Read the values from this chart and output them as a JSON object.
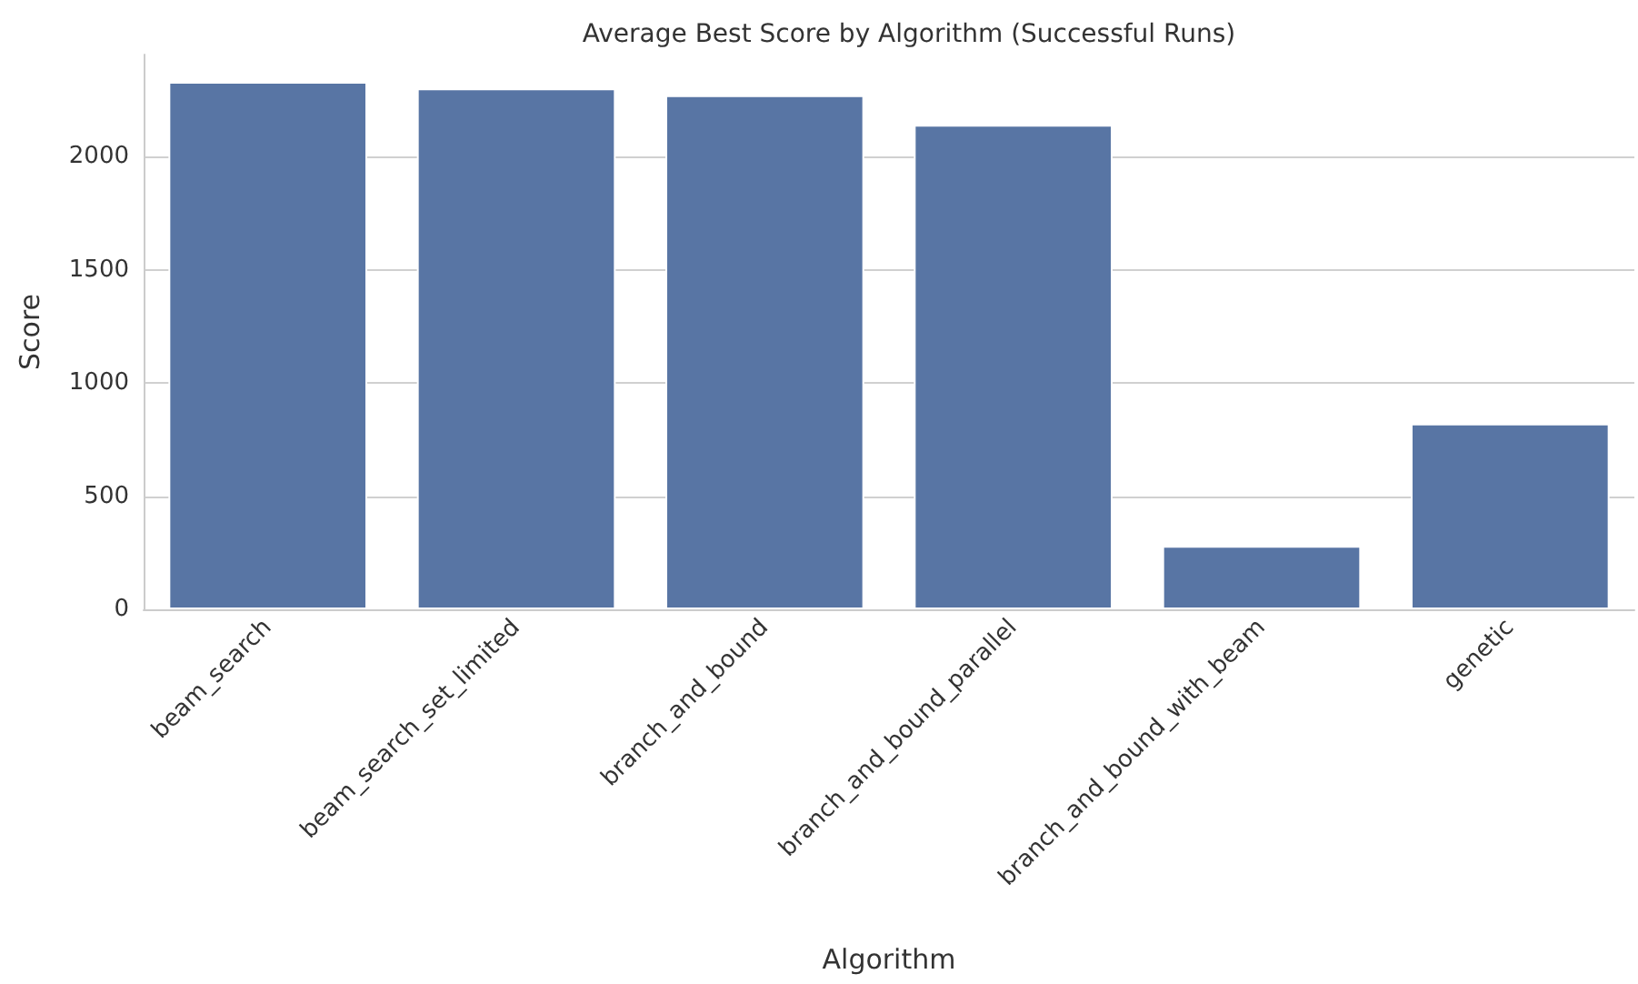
{
  "chart_data": {
    "type": "bar",
    "title": "Average Best Score by Algorithm (Successful Runs)",
    "xlabel": "Algorithm",
    "ylabel": "Score",
    "categories": [
      "beam_search",
      "beam_search_set_limited",
      "branch_and_bound",
      "branch_and_bound_parallel",
      "branch_and_bound_with_beam",
      "genetic"
    ],
    "values": [
      2330,
      2300,
      2270,
      2140,
      280,
      820
    ],
    "color": "#5875a4",
    "ylim": [
      0,
      2450
    ],
    "yticks": [
      0,
      500,
      1000,
      1500,
      2000
    ],
    "grid": "y"
  }
}
